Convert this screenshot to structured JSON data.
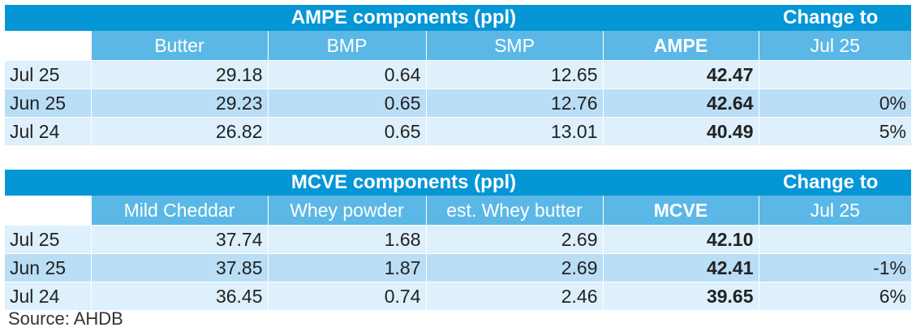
{
  "ampe": {
    "title": "AMPE components (ppl)",
    "change_label": "Change to",
    "columns": [
      "Butter",
      "BMP",
      "SMP",
      "AMPE",
      "Jul 25"
    ],
    "rows": [
      {
        "label": "Jul 25",
        "c1": "29.18",
        "c2": "0.64",
        "c3": "12.65",
        "total": "42.47",
        "change": ""
      },
      {
        "label": "Jun 25",
        "c1": "29.23",
        "c2": "0.65",
        "c3": "12.76",
        "total": "42.64",
        "change": "0%"
      },
      {
        "label": "Jul 24",
        "c1": "26.82",
        "c2": "0.65",
        "c3": "13.01",
        "total": "40.49",
        "change": "5%"
      }
    ]
  },
  "mcve": {
    "title": "MCVE components (ppl)",
    "change_label": "Change to",
    "columns": [
      "Mild Cheddar",
      "Whey powder",
      "est. Whey butter",
      "MCVE",
      "Jul 25"
    ],
    "rows": [
      {
        "label": "Jul 25",
        "c1": "37.74",
        "c2": "1.68",
        "c3": "2.69",
        "total": "42.10",
        "change": ""
      },
      {
        "label": "Jun 25",
        "c1": "37.85",
        "c2": "1.87",
        "c3": "2.69",
        "total": "42.41",
        "change": "-1%"
      },
      {
        "label": "Jul 24",
        "c1": "36.45",
        "c2": "0.74",
        "c3": "2.46",
        "total": "39.65",
        "change": "6%"
      }
    ]
  },
  "source": "Source: AHDB",
  "colors": {
    "header_dark": "#0596d6",
    "header_light": "#5bb8e6",
    "row_light": "#ddf0fb",
    "row_dark": "#b9def6"
  }
}
